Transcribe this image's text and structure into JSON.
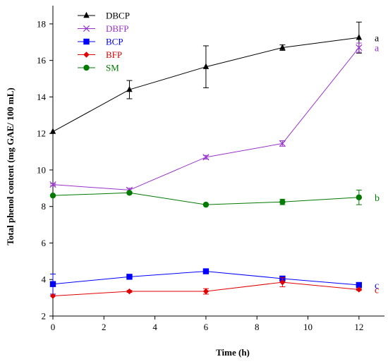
{
  "chart_data": {
    "type": "line",
    "xlabel": "Time (h)",
    "ylabel": "Total phenol content (mg GAE/ 100 mL)",
    "xlim": [
      0,
      13
    ],
    "ylim": [
      2,
      19
    ],
    "xticks": [
      0,
      2,
      4,
      6,
      8,
      10,
      12
    ],
    "yticks": [
      2,
      4,
      6,
      8,
      10,
      12,
      14,
      16,
      18
    ],
    "x": [
      0,
      3,
      6,
      9,
      12
    ],
    "grid": false,
    "legend_position": "top-left",
    "series": [
      {
        "name": "DBCP",
        "color": "#000000",
        "marker": "triangle",
        "values": [
          12.1,
          14.4,
          15.65,
          16.7,
          17.25
        ],
        "errors": [
          0,
          0.5,
          1.15,
          0.15,
          0.85
        ],
        "letter": "a"
      },
      {
        "name": "DBFP",
        "color": "#9933cc",
        "marker": "cross",
        "values": [
          9.2,
          8.9,
          10.7,
          11.45,
          16.7
        ],
        "errors": [
          0.05,
          0.1,
          0.1,
          0.15,
          0.25
        ],
        "letter": "a"
      },
      {
        "name": "BCP",
        "color": "#0000ff",
        "marker": "square",
        "values": [
          3.75,
          4.15,
          4.45,
          4.05,
          3.7
        ],
        "errors": [
          0.55,
          0.05,
          0.1,
          0.1,
          0.05
        ],
        "letter": "c"
      },
      {
        "name": "BFP",
        "color": "#e00000",
        "marker": "diamond",
        "values": [
          3.1,
          3.35,
          3.35,
          3.85,
          3.45
        ],
        "errors": [
          0,
          0.05,
          0.15,
          0.25,
          0.05
        ],
        "letter": "c"
      },
      {
        "name": "SM",
        "color": "#007a00",
        "marker": "circle",
        "values": [
          8.6,
          8.75,
          8.1,
          8.25,
          8.5
        ],
        "errors": [
          0,
          0.05,
          0,
          0.15,
          0.4
        ],
        "letter": "b"
      }
    ]
  }
}
